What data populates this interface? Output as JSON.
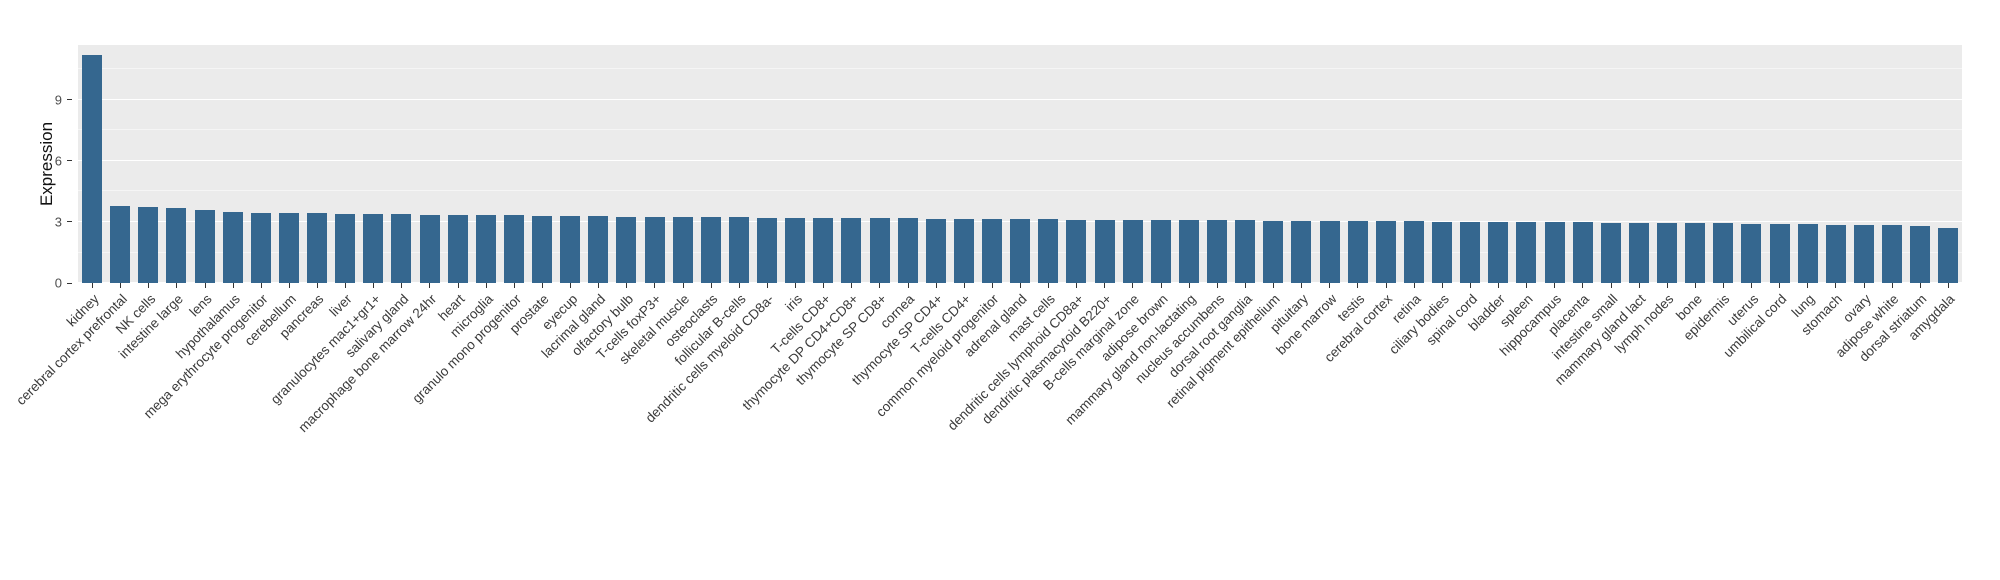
{
  "figure": {
    "background": "#FFFFFF"
  },
  "chart_data": {
    "type": "bar",
    "title": "",
    "xlabel": "",
    "ylabel": "Expression",
    "ylim": [
      0,
      11.7
    ],
    "yticks_major": [
      0,
      3,
      6,
      9
    ],
    "yticks_minor": [
      1.5,
      4.5,
      7.5,
      10.5
    ],
    "grid": "on",
    "legend": "none",
    "bar_color": "#35678F",
    "panel_background": "#EBEBEB",
    "grid_color": "#FFFFFF",
    "axis_text_color": "#4D4D4D",
    "categories": [
      "kidney",
      "cerebral cortex prefrontal",
      "NK cells",
      "intestine large",
      "lens",
      "hypothalamus",
      "mega erythrocyte progenitor",
      "cerebellum",
      "pancreas",
      "liver",
      "granulocytes mac1+gr1+",
      "salivary gland",
      "macrophage bone marrow 24hr",
      "heart",
      "microglia",
      "granulo mono progenitor",
      "prostate",
      "eyecup",
      "lacrimal gland",
      "olfactory bulb",
      "T-cells foxP3+",
      "skeletal muscle",
      "osteoclasts",
      "follicular B-cells",
      "dendritic cells myeloid CD8a-",
      "iris",
      "T-cells CD8+",
      "thymocyte DP CD4+CD8+",
      "thymocyte SP CD8+",
      "cornea",
      "thymocyte SP CD4+",
      "T-cells CD4+",
      "common myeloid progenitor",
      "adrenal gland",
      "mast cells",
      "dendritic cells lymphoid CD8a+",
      "dendritic plasmacytoid B220+",
      "B-cells marginal zone",
      "adipose brown",
      "mammary gland non-lactating",
      "nucleus accumbens",
      "dorsal root ganglia",
      "retinal pigment epithelium",
      "pituitary",
      "bone marrow",
      "testis",
      "cerebral cortex",
      "retina",
      "ciliary bodies",
      "spinal cord",
      "bladder",
      "spleen",
      "hippocampus",
      "placenta",
      "intestine small",
      "mammary gland lact",
      "lymph nodes",
      "bone",
      "epidermis",
      "uterus",
      "umbilical cord",
      "lung",
      "stomach",
      "ovary",
      "adipose white",
      "dorsal striatum",
      "amygdala"
    ],
    "values": [
      11.2,
      3.8,
      3.75,
      3.7,
      3.6,
      3.5,
      3.45,
      3.45,
      3.45,
      3.4,
      3.4,
      3.38,
      3.36,
      3.35,
      3.33,
      3.32,
      3.3,
      3.28,
      3.27,
      3.26,
      3.25,
      3.25,
      3.24,
      3.23,
      3.22,
      3.21,
      3.2,
      3.2,
      3.19,
      3.18,
      3.17,
      3.16,
      3.15,
      3.14,
      3.13,
      3.12,
      3.12,
      3.11,
      3.1,
      3.1,
      3.09,
      3.08,
      3.07,
      3.06,
      3.05,
      3.05,
      3.04,
      3.03,
      3.02,
      3.01,
      3.0,
      3.0,
      2.99,
      2.98,
      2.97,
      2.96,
      2.95,
      2.94,
      2.93,
      2.92,
      2.9,
      2.88,
      2.87,
      2.86,
      2.85,
      2.8,
      2.7
    ]
  }
}
